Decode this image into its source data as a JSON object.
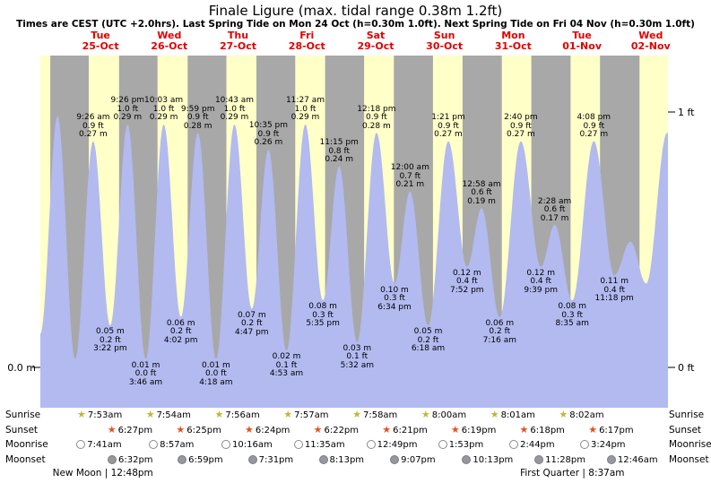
{
  "title": "Finale Ligure (max. tidal range 0.38m 1.2ft)",
  "subtitle": "Times are CEST (UTC +2.0hrs). Last Spring Tide on Mon 24 Oct (h=0.30m 1.0ft). Next Spring Tide on Fri 04 Nov (h=0.30m 1.0ft)",
  "axis": {
    "left_zero": "0.0 m",
    "right_one_ft": "1 ft",
    "right_zero_ft": "0 ft"
  },
  "day_labels": [
    {
      "dow": "Tue",
      "date": "25-Oct"
    },
    {
      "dow": "Wed",
      "date": "26-Oct"
    },
    {
      "dow": "Thu",
      "date": "27-Oct"
    },
    {
      "dow": "Fri",
      "date": "28-Oct"
    },
    {
      "dow": "Sat",
      "date": "29-Oct"
    },
    {
      "dow": "Sun",
      "date": "30-Oct"
    },
    {
      "dow": "Mon",
      "date": "31-Oct"
    },
    {
      "dow": "Tue",
      "date": "01-Nov"
    },
    {
      "dow": "Wed",
      "date": "02-Nov"
    }
  ],
  "chart_data": {
    "type": "area",
    "title": "Finale Ligure tide height",
    "x_unit": "hours relative to Tue 25-Oct 00:00 (CEST)",
    "time_range_hours": [
      -9,
      210
    ],
    "ylim_m": [
      -0.048,
      0.376
    ],
    "ft_to_m": 0.3048,
    "colors": {
      "fill": "#b2baf0",
      "day_band": "#ffffc8",
      "night_band": "#a8a8a8"
    },
    "day_bands_hours": [
      [
        -9,
        -5.53
      ],
      [
        7.88,
        18.45
      ],
      [
        31.9,
        42.42
      ],
      [
        55.93,
        66.4
      ],
      [
        79.95,
        90.37
      ],
      [
        103.97,
        114.35
      ],
      [
        128.0,
        138.32
      ],
      [
        152.02,
        162.3
      ],
      [
        176.03,
        186.28
      ],
      [
        200.07,
        210
      ]
    ],
    "tide_extremes": [
      {
        "t": -9.0,
        "m": 0.04,
        "type": "low"
      },
      {
        "t": -3.0,
        "m": 0.3,
        "type": "high"
      },
      {
        "t": 3.13,
        "m": 0.01,
        "type": "low"
      },
      {
        "t": 9.43,
        "m": 0.27,
        "type": "high",
        "label": {
          "time": "9:26 am",
          "ft": "0.9 ft",
          "m": "0.27 m"
        }
      },
      {
        "t": 15.37,
        "m": 0.05,
        "type": "low",
        "label": {
          "m": "0.05 m",
          "ft": "0.2 ft",
          "time": "3:22 pm"
        }
      },
      {
        "t": 21.43,
        "m": 0.29,
        "type": "high",
        "label": {
          "time": "9:26 pm",
          "ft": "1.0 ft",
          "m": "0.29 m"
        }
      },
      {
        "t": 27.77,
        "m": 0.01,
        "type": "low",
        "label": {
          "m": "0.01 m",
          "ft": "0.0 ft",
          "time": "3:46 am"
        }
      },
      {
        "t": 34.05,
        "m": 0.29,
        "type": "high",
        "label": {
          "time": "10:03 am",
          "ft": "1.0 ft",
          "m": "0.29 m"
        }
      },
      {
        "t": 40.03,
        "m": 0.06,
        "type": "low",
        "label": {
          "m": "0.06 m",
          "ft": "0.2 ft",
          "time": "4:02 pm"
        }
      },
      {
        "t": 45.98,
        "m": 0.28,
        "type": "high",
        "label": {
          "time": "9:59 pm",
          "ft": "0.9 ft",
          "m": "0.28 m"
        }
      },
      {
        "t": 52.3,
        "m": 0.01,
        "type": "low",
        "label": {
          "m": "0.01 m",
          "ft": "0.0 ft",
          "time": "4:18 am"
        }
      },
      {
        "t": 58.72,
        "m": 0.29,
        "type": "high",
        "label": {
          "time": "10:43 am",
          "ft": "1.0 ft",
          "m": "0.29 m"
        }
      },
      {
        "t": 64.78,
        "m": 0.07,
        "type": "low",
        "label": {
          "m": "0.07 m",
          "ft": "0.2 ft",
          "time": "4:47 pm"
        }
      },
      {
        "t": 70.58,
        "m": 0.26,
        "type": "high",
        "label": {
          "time": "10:35 pm",
          "ft": "0.9 ft",
          "m": "0.26 m"
        }
      },
      {
        "t": 76.88,
        "m": 0.02,
        "type": "low",
        "label": {
          "m": "0.02 m",
          "ft": "0.1 ft",
          "time": "4:53 am"
        }
      },
      {
        "t": 83.45,
        "m": 0.29,
        "type": "high",
        "label": {
          "time": "11:27 am",
          "ft": "1.0 ft",
          "m": "0.29 m"
        }
      },
      {
        "t": 89.58,
        "m": 0.08,
        "type": "low",
        "label": {
          "m": "0.08 m",
          "ft": "0.3 ft",
          "time": "5:35 pm"
        }
      },
      {
        "t": 95.25,
        "m": 0.24,
        "type": "high",
        "label": {
          "time": "11:15 pm",
          "ft": "0.8 ft",
          "m": "0.24 m"
        }
      },
      {
        "t": 101.53,
        "m": 0.03,
        "type": "low",
        "label": {
          "m": "0.03 m",
          "ft": "0.1 ft",
          "time": "5:32 am"
        }
      },
      {
        "t": 108.3,
        "m": 0.28,
        "type": "high",
        "label": {
          "time": "12:18 pm",
          "ft": "0.9 ft",
          "m": "0.28 m"
        }
      },
      {
        "t": 114.57,
        "m": 0.1,
        "type": "low",
        "label": {
          "m": "0.10 m",
          "ft": "0.3 ft",
          "time": "6:34 pm"
        }
      },
      {
        "t": 120.0,
        "m": 0.21,
        "type": "high",
        "label": {
          "time": "12:00 am",
          "ft": "0.7 ft",
          "m": "0.21 m"
        }
      },
      {
        "t": 126.3,
        "m": 0.05,
        "type": "low",
        "label": {
          "m": "0.05 m",
          "ft": "0.2 ft",
          "time": "6:18 am"
        }
      },
      {
        "t": 133.35,
        "m": 0.27,
        "type": "high",
        "label": {
          "time": "1:21 pm",
          "ft": "0.9 ft",
          "m": "0.27 m"
        }
      },
      {
        "t": 139.87,
        "m": 0.12,
        "type": "low",
        "label": {
          "m": "0.12 m",
          "ft": "0.4 ft",
          "time": "7:52 pm"
        }
      },
      {
        "t": 144.97,
        "m": 0.19,
        "type": "high",
        "label": {
          "time": "12:58 am",
          "ft": "0.6 ft",
          "m": "0.19 m"
        }
      },
      {
        "t": 151.27,
        "m": 0.06,
        "type": "low",
        "label": {
          "m": "0.06 m",
          "ft": "0.2 ft",
          "time": "7:16 am"
        }
      },
      {
        "t": 158.67,
        "m": 0.27,
        "type": "high",
        "label": {
          "time": "2:40 pm",
          "ft": "0.9 ft",
          "m": "0.27 m"
        }
      },
      {
        "t": 165.65,
        "m": 0.12,
        "type": "low",
        "label": {
          "m": "0.12 m",
          "ft": "0.4 ft",
          "time": "9:39 pm"
        }
      },
      {
        "t": 170.47,
        "m": 0.17,
        "type": "high",
        "label": {
          "time": "2:28 am",
          "ft": "0.6 ft",
          "m": "0.17 m"
        }
      },
      {
        "t": 176.58,
        "m": 0.08,
        "type": "low",
        "label": {
          "m": "0.08 m",
          "ft": "0.3 ft",
          "time": "8:35 am"
        }
      },
      {
        "t": 184.13,
        "m": 0.27,
        "type": "high",
        "label": {
          "time": "4:08 pm",
          "ft": "0.9 ft",
          "m": "0.27 m"
        }
      },
      {
        "t": 191.3,
        "m": 0.11,
        "type": "low",
        "label": {
          "m": "0.11 m",
          "ft": "0.4 ft",
          "time": "11:18 pm"
        }
      },
      {
        "t": 196.9,
        "m": 0.15,
        "type": "high"
      },
      {
        "t": 202.4,
        "m": 0.1,
        "type": "low"
      },
      {
        "t": 209.7,
        "m": 0.28,
        "type": "high"
      },
      {
        "t": 210.0,
        "m": 0.279,
        "type": "end"
      }
    ]
  },
  "astro": {
    "row_labels": [
      "Sunrise",
      "Sunset",
      "Moonrise",
      "Moonset"
    ],
    "icon_colors": {
      "sunrise": "#c2b63b",
      "sunset": "#e0521e",
      "moonrise": "#ffffff",
      "moonset": "#95989c"
    },
    "sunrise": [
      {
        "time": "7:53am",
        "t": 7.88
      },
      {
        "time": "7:54am",
        "t": 31.9
      },
      {
        "time": "7:56am",
        "t": 55.93
      },
      {
        "time": "7:57am",
        "t": 79.95
      },
      {
        "time": "7:58am",
        "t": 103.97
      },
      {
        "time": "8:00am",
        "t": 128.0
      },
      {
        "time": "8:01am",
        "t": 152.02
      },
      {
        "time": "8:02am",
        "t": 176.03
      }
    ],
    "sunset": [
      {
        "time": "6:27pm",
        "t": 18.45
      },
      {
        "time": "6:25pm",
        "t": 42.42
      },
      {
        "time": "6:24pm",
        "t": 66.4
      },
      {
        "time": "6:22pm",
        "t": 90.37
      },
      {
        "time": "6:21pm",
        "t": 114.35
      },
      {
        "time": "6:19pm",
        "t": 138.32
      },
      {
        "time": "6:18pm",
        "t": 162.3
      },
      {
        "time": "6:17pm",
        "t": 186.28
      }
    ],
    "moonrise": [
      {
        "time": "7:41am",
        "t": 7.68
      },
      {
        "time": "8:57am",
        "t": 32.95
      },
      {
        "time": "10:16am",
        "t": 58.27
      },
      {
        "time": "11:35am",
        "t": 83.58
      },
      {
        "time": "12:49pm",
        "t": 108.82
      },
      {
        "time": "1:53pm",
        "t": 133.88
      },
      {
        "time": "2:44pm",
        "t": 158.73
      },
      {
        "time": "3:24pm",
        "t": 183.4
      }
    ],
    "moonset": [
      {
        "time": "6:32pm",
        "t": 18.53
      },
      {
        "time": "6:59pm",
        "t": 42.98
      },
      {
        "time": "7:31pm",
        "t": 67.52
      },
      {
        "time": "8:13pm",
        "t": 92.22
      },
      {
        "time": "9:07pm",
        "t": 117.12
      },
      {
        "time": "10:13pm",
        "t": 142.22
      },
      {
        "time": "11:28pm",
        "t": 167.47
      },
      {
        "time": "12:46am",
        "t": 192.77
      }
    ],
    "moon_phases": [
      {
        "label": "New Moon | 12:48pm",
        "t": 12.8
      },
      {
        "label": "First Quarter | 8:37am",
        "t": 176.62
      }
    ]
  }
}
